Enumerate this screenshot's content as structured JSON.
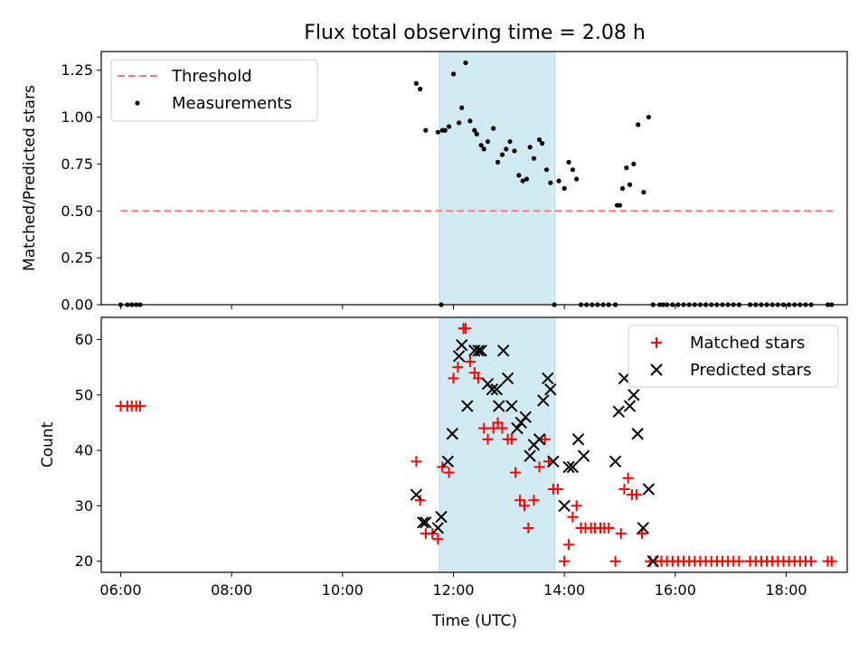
{
  "chart_data": [
    {
      "type": "scatter",
      "title": "Flux total observing time = 2.08 h",
      "ylabel": "Matched/Predicted stars",
      "xlim": [
        5.65,
        19.1
      ],
      "ylim": [
        0.0,
        1.35
      ],
      "yticks": [
        0.0,
        0.25,
        0.5,
        0.75,
        1.0,
        1.25
      ],
      "ytick_labels": [
        "0.00",
        "0.25",
        "0.50",
        "0.75",
        "1.00",
        "1.25"
      ],
      "shaded_span": [
        11.75,
        13.83
      ],
      "shaded_color": "#add8e6",
      "legend_position": "upper-left",
      "threshold": {
        "name": "Threshold",
        "value": 0.5,
        "x_range": [
          6.0,
          18.85
        ],
        "color": "#f08080",
        "style": "dashed"
      },
      "series": [
        {
          "name": "Measurements",
          "color": "#000000",
          "marker": "dot",
          "x": [
            6.0,
            6.12,
            6.2,
            6.28,
            6.35,
            11.33,
            11.4,
            11.5,
            11.72,
            11.78,
            11.8,
            11.85,
            11.92,
            12.0,
            12.1,
            12.15,
            12.22,
            12.3,
            12.38,
            12.42,
            12.5,
            12.55,
            12.62,
            12.72,
            12.8,
            12.88,
            12.95,
            13.02,
            13.1,
            13.18,
            13.25,
            13.32,
            13.38,
            13.45,
            13.55,
            13.6,
            13.68,
            13.75,
            13.82,
            13.9,
            14.0,
            14.08,
            14.15,
            14.22,
            14.3,
            14.4,
            14.5,
            14.6,
            14.7,
            14.8,
            14.92,
            14.95,
            15.0,
            15.05,
            15.12,
            15.18,
            15.25,
            15.33,
            15.43,
            15.52,
            15.6,
            15.72,
            15.78,
            15.85,
            15.95,
            16.05,
            16.15,
            16.25,
            16.35,
            16.45,
            16.55,
            16.65,
            16.75,
            16.85,
            16.95,
            17.05,
            17.15,
            17.35,
            17.45,
            17.55,
            17.65,
            17.75,
            17.85,
            17.95,
            18.05,
            18.15,
            18.25,
            18.35,
            18.45,
            18.75,
            18.82
          ],
          "y": [
            0.0,
            0.0,
            0.0,
            0.0,
            0.0,
            1.18,
            1.15,
            0.93,
            0.92,
            0.0,
            0.93,
            0.93,
            0.95,
            1.23,
            0.97,
            1.05,
            1.29,
            0.98,
            0.93,
            0.91,
            0.85,
            0.83,
            0.87,
            0.94,
            0.76,
            0.8,
            0.83,
            0.87,
            0.82,
            0.69,
            0.66,
            0.67,
            0.84,
            0.78,
            0.88,
            0.86,
            0.72,
            0.65,
            0.0,
            0.66,
            0.62,
            0.76,
            0.72,
            0.67,
            0.0,
            0.0,
            0.0,
            0.0,
            0.0,
            0.0,
            0.0,
            0.53,
            0.53,
            0.62,
            0.73,
            0.64,
            0.75,
            0.96,
            0.6,
            1.0,
            0.0,
            0.0,
            0.0,
            0.0,
            0.0,
            0.0,
            0.0,
            0.0,
            0.0,
            0.0,
            0.0,
            0.0,
            0.0,
            0.0,
            0.0,
            0.0,
            0.0,
            0.0,
            0.0,
            0.0,
            0.0,
            0.0,
            0.0,
            0.0,
            0.0,
            0.0,
            0.0,
            0.0,
            0.0,
            0.0,
            0.0
          ]
        }
      ]
    },
    {
      "type": "scatter",
      "xlabel": "Time (UTC)",
      "ylabel": "Count",
      "xlim": [
        5.65,
        19.1
      ],
      "ylim": [
        18,
        64
      ],
      "xticks": [
        6,
        8,
        10,
        12,
        14,
        16,
        18
      ],
      "xtick_labels": [
        "06:00",
        "08:00",
        "10:00",
        "12:00",
        "14:00",
        "16:00",
        "18:00"
      ],
      "yticks": [
        20,
        30,
        40,
        50,
        60
      ],
      "ytick_labels": [
        "20",
        "30",
        "40",
        "50",
        "60"
      ],
      "shaded_span": [
        11.75,
        13.83
      ],
      "shaded_color": "#add8e6",
      "legend_position": "upper-right",
      "series": [
        {
          "name": "Matched stars",
          "color": "#ff0000",
          "marker": "plus",
          "x": [
            6.0,
            6.12,
            6.2,
            6.28,
            6.35,
            11.33,
            11.4,
            11.5,
            11.62,
            11.72,
            11.8,
            11.92,
            12.0,
            12.08,
            12.18,
            12.22,
            12.3,
            12.38,
            12.45,
            12.55,
            12.62,
            12.72,
            12.8,
            12.88,
            12.98,
            13.05,
            13.12,
            13.2,
            13.28,
            13.35,
            13.45,
            13.55,
            13.65,
            13.72,
            13.8,
            13.88,
            14.0,
            14.08,
            14.15,
            14.22,
            14.3,
            14.38,
            14.48,
            14.55,
            14.65,
            14.72,
            14.8,
            14.92,
            15.02,
            15.08,
            15.15,
            15.22,
            15.3,
            15.4,
            15.55,
            15.65,
            15.75,
            15.85,
            15.95,
            16.05,
            16.15,
            16.25,
            16.35,
            16.45,
            16.55,
            16.65,
            16.75,
            16.85,
            16.95,
            17.05,
            17.15,
            17.35,
            17.45,
            17.55,
            17.65,
            17.75,
            17.85,
            17.95,
            18.05,
            18.15,
            18.25,
            18.35,
            18.45,
            18.75,
            18.82
          ],
          "y": [
            48,
            48,
            48,
            48,
            48,
            38,
            31,
            25,
            25,
            24,
            37,
            36,
            53,
            55,
            62,
            62,
            56,
            54,
            53,
            44,
            42,
            44,
            45,
            44,
            42,
            42,
            36,
            31,
            30,
            26,
            31,
            37,
            42,
            38,
            33,
            33,
            20,
            23,
            28,
            30,
            26,
            26,
            26,
            26,
            26,
            26,
            26,
            20,
            25,
            33,
            35,
            32,
            32,
            25,
            20,
            20,
            20,
            20,
            20,
            20,
            20,
            20,
            20,
            20,
            20,
            20,
            20,
            20,
            20,
            20,
            20,
            20,
            20,
            20,
            20,
            20,
            20,
            20,
            20,
            20,
            20,
            20,
            20,
            20,
            20
          ]
        },
        {
          "name": "Predicted stars",
          "color": "#000000",
          "marker": "x",
          "x": [
            11.33,
            11.45,
            11.5,
            11.72,
            11.78,
            11.9,
            11.98,
            12.1,
            12.15,
            12.25,
            12.38,
            12.45,
            12.5,
            12.62,
            12.7,
            12.78,
            12.82,
            12.9,
            12.98,
            13.05,
            13.15,
            13.22,
            13.3,
            13.38,
            13.45,
            13.55,
            13.62,
            13.7,
            13.75,
            13.8,
            14.0,
            14.08,
            14.15,
            14.25,
            14.35,
            14.92,
            14.98,
            15.08,
            15.18,
            15.25,
            15.32,
            15.42,
            15.52,
            15.6
          ],
          "y": [
            32,
            27,
            27,
            26,
            28,
            38,
            43,
            57,
            59,
            48,
            58,
            58,
            58,
            52,
            51,
            51,
            48,
            58,
            53,
            48,
            44,
            45,
            46,
            39,
            41,
            42,
            49,
            53,
            51,
            38,
            30,
            37,
            37,
            42,
            39,
            38,
            47,
            53,
            48,
            50,
            43,
            26,
            33,
            20
          ]
        }
      ]
    }
  ]
}
